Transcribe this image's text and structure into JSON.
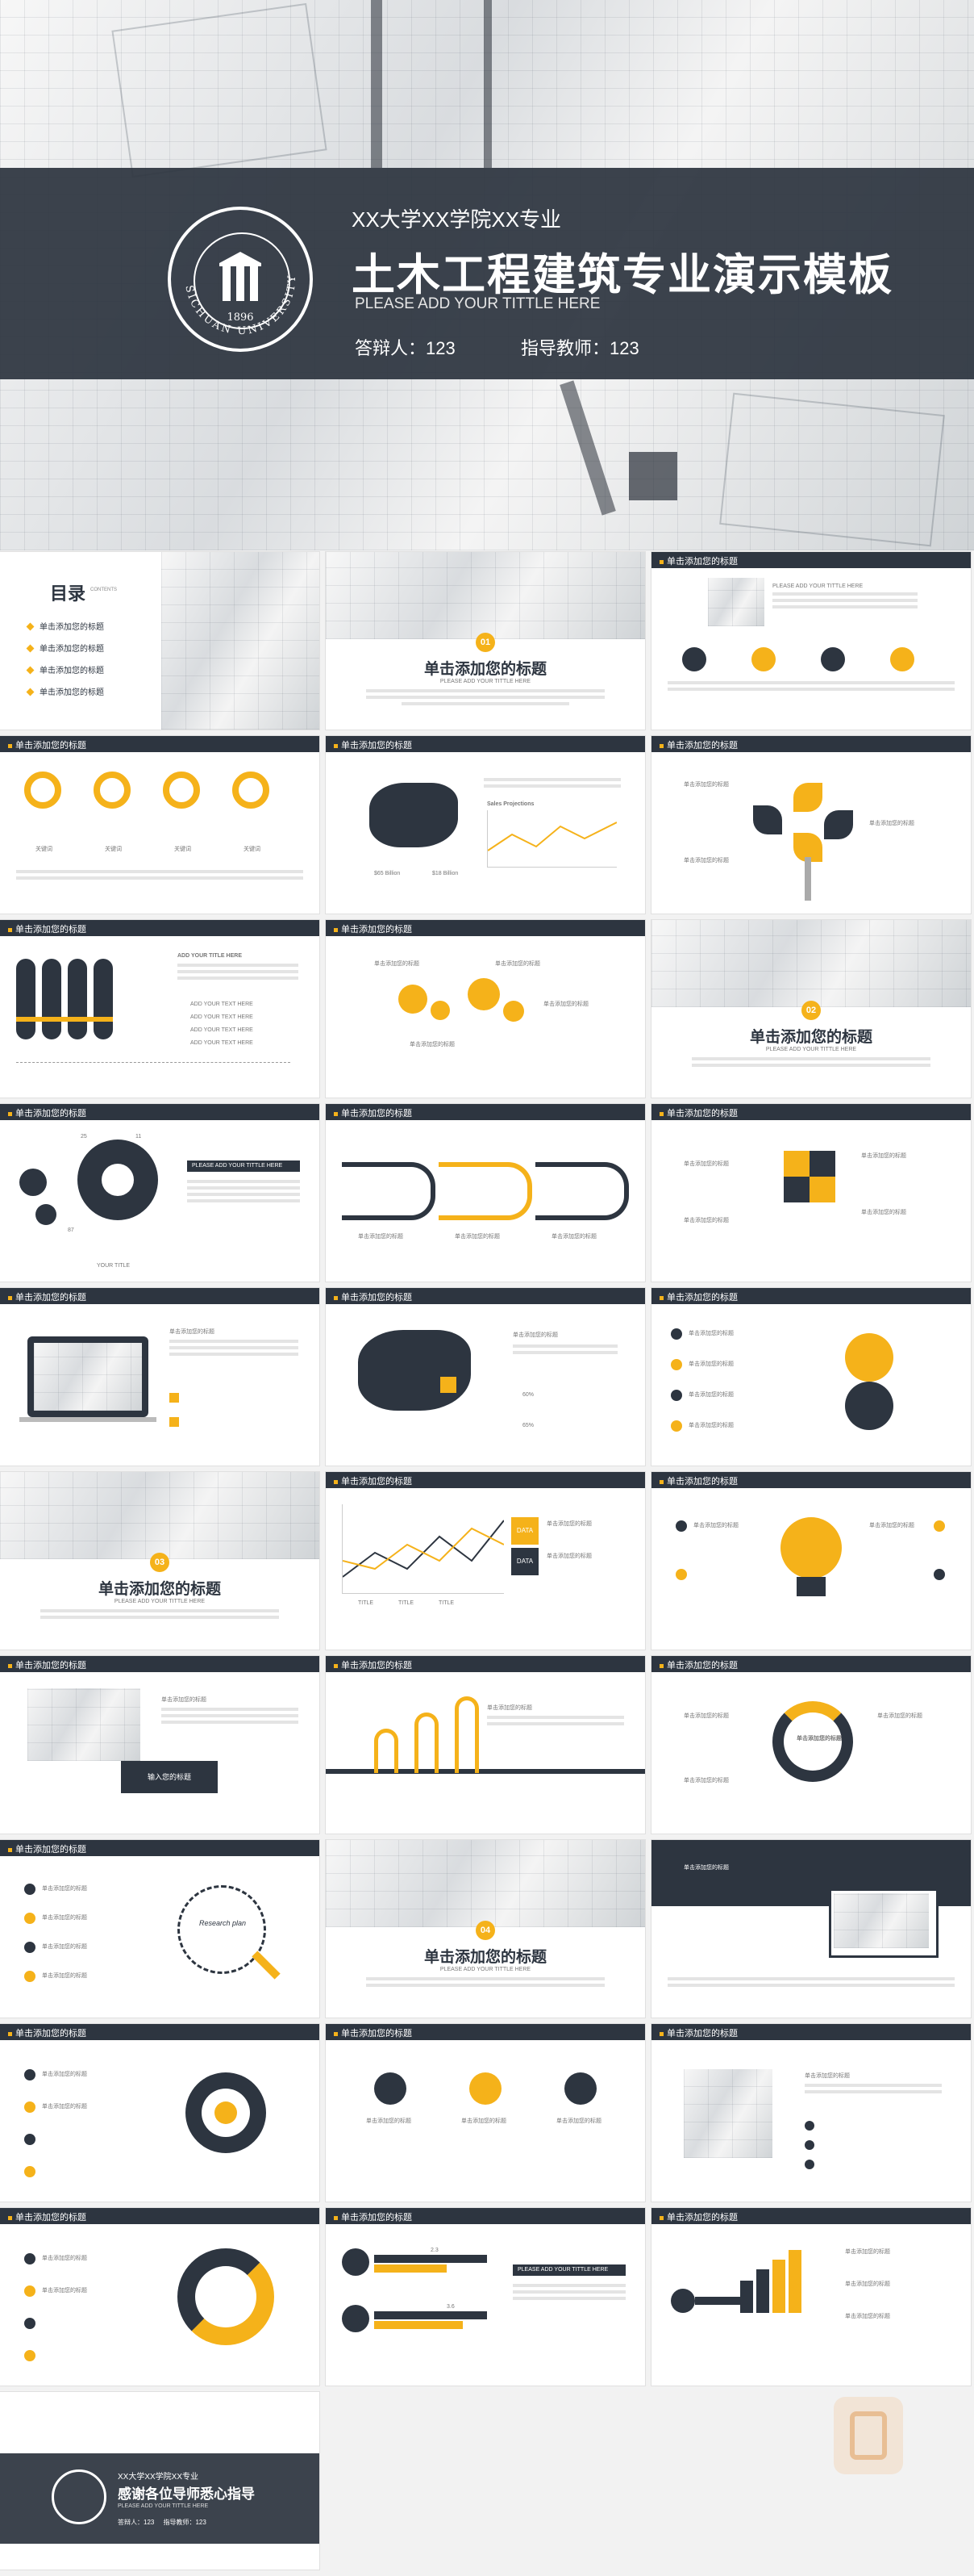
{
  "cover": {
    "subtitle": "XX大学XX学院XX专业",
    "title": "土木工程建筑专业演示模板",
    "en_title": "PLEASE ADD YOUR TITTLE HERE",
    "defender": "答辩人：123",
    "advisor": "指导教师：123",
    "logo_text": "SICHUAN UNIVERSITY",
    "logo_year": "1896"
  },
  "slide_title": "单击添加您的标题",
  "section_title": "单击添加您的标题",
  "section_sub": "PLEASE ADD YOUR TITTLE HERE",
  "toc": {
    "heading": "目录",
    "heading_en": "CONTENTS",
    "items": [
      "单击添加您的标题",
      "单击添加您的标题",
      "单击添加您的标题",
      "单击添加您的标题"
    ]
  },
  "sections": {
    "s1": "01",
    "s2": "02",
    "s3": "03",
    "s4": "04"
  },
  "keyword": "关键词",
  "map_stats": {
    "a": "$65 Billion",
    "b": "$18 Billion"
  },
  "chart_title": "Sales Projections",
  "add_title": "ADD YOUR TITLE HERE",
  "add_text": "ADD YOUR TEXT HERE",
  "please_add": "PLEASE ADD YOUR TITTLE HERE",
  "gear_nums": {
    "a": "25",
    "b": "11",
    "c": "87"
  },
  "your_title": "YOUR TITLE",
  "percents": {
    "a": "60%",
    "b": "65%"
  },
  "data_label": "DATA",
  "legend": [
    "TITLE",
    "TITLE",
    "TITLE"
  ],
  "input_title": "输入您的标题",
  "research": "Research plan",
  "thanks": {
    "subtitle": "XX大学XX学院XX专业",
    "title": "感谢各位导师悉心指导",
    "en": "PLEASE ADD YOUR TITTLE HERE",
    "meta": "答辩人：123     指导教师：123"
  },
  "bar_values": {
    "a": "2.3",
    "b": "3.6"
  },
  "colors": {
    "navy": "#2d3540",
    "yellow": "#f5b21a"
  }
}
